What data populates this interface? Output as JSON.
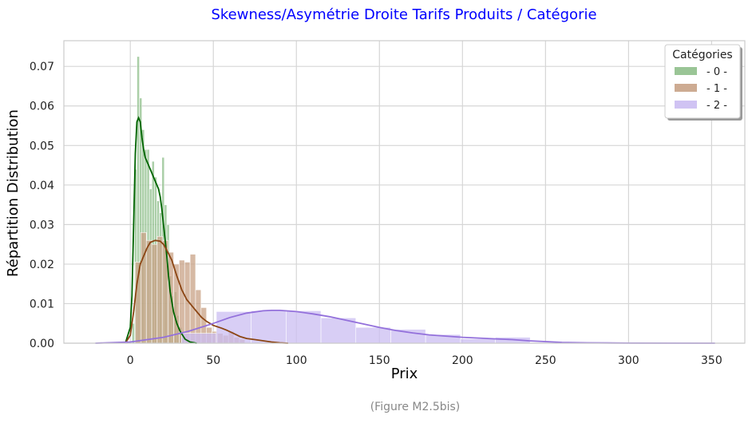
{
  "chart_data": {
    "type": "histogram",
    "title": "Skewness/Asymétrie Droite Tarifs Produits / Catégorie",
    "xlabel": "Prix",
    "ylabel": "Répartition Distribution",
    "caption": "(Figure M2.5bis)",
    "xlim": [
      -40,
      370
    ],
    "ylim": [
      0,
      0.0765
    ],
    "x_ticks": [
      0,
      50,
      100,
      150,
      200,
      250,
      300,
      350
    ],
    "y_ticks": [
      0.0,
      0.01,
      0.02,
      0.03,
      0.04,
      0.05,
      0.06,
      0.07
    ],
    "grid": true,
    "legend": {
      "title": "Catégories",
      "position": "top-right",
      "entries": [
        "- 0 -",
        "- 1 -",
        "- 2 -"
      ]
    },
    "series": [
      {
        "name": "- 0 -",
        "bar_color": "#8fbf8b",
        "line_color": "#006400",
        "bins": [
          {
            "x0": 1,
            "x1": 2.5,
            "y": 0.005
          },
          {
            "x0": 2.5,
            "x1": 4,
            "y": 0.044
          },
          {
            "x0": 4,
            "x1": 5.5,
            "y": 0.0725
          },
          {
            "x0": 5.5,
            "x1": 7,
            "y": 0.062
          },
          {
            "x0": 7,
            "x1": 8.5,
            "y": 0.054
          },
          {
            "x0": 8.5,
            "x1": 10,
            "y": 0.049
          },
          {
            "x0": 10,
            "x1": 11.5,
            "y": 0.049
          },
          {
            "x0": 11.5,
            "x1": 13,
            "y": 0.039
          },
          {
            "x0": 13,
            "x1": 14.5,
            "y": 0.046
          },
          {
            "x0": 14.5,
            "x1": 16,
            "y": 0.042
          },
          {
            "x0": 16,
            "x1": 17.5,
            "y": 0.036
          },
          {
            "x0": 17.5,
            "x1": 19,
            "y": 0.033
          },
          {
            "x0": 19,
            "x1": 20.5,
            "y": 0.047
          },
          {
            "x0": 20.5,
            "x1": 22,
            "y": 0.035
          },
          {
            "x0": 22,
            "x1": 23.5,
            "y": 0.03
          },
          {
            "x0": 23.5,
            "x1": 25,
            "y": 0.017
          },
          {
            "x0": 25,
            "x1": 26.5,
            "y": 0.012
          },
          {
            "x0": 26.5,
            "x1": 28,
            "y": 0.013
          },
          {
            "x0": 28,
            "x1": 29.5,
            "y": 0.007
          },
          {
            "x0": 29.5,
            "x1": 31,
            "y": 0.004
          },
          {
            "x0": 31,
            "x1": 32.5,
            "y": 0.0015
          }
        ],
        "kde": [
          [
            -3,
            0
          ],
          [
            0,
            0.004
          ],
          [
            1,
            0.012
          ],
          [
            2,
            0.03
          ],
          [
            3,
            0.048
          ],
          [
            4,
            0.056
          ],
          [
            5,
            0.057
          ],
          [
            6,
            0.056
          ],
          [
            7,
            0.052
          ],
          [
            8,
            0.049
          ],
          [
            9,
            0.047
          ],
          [
            10,
            0.046
          ],
          [
            11,
            0.045
          ],
          [
            12,
            0.044
          ],
          [
            13,
            0.043
          ],
          [
            14,
            0.042
          ],
          [
            15,
            0.041
          ],
          [
            16,
            0.04
          ],
          [
            17,
            0.039
          ],
          [
            18,
            0.037
          ],
          [
            19,
            0.034
          ],
          [
            20,
            0.03
          ],
          [
            21,
            0.026
          ],
          [
            22,
            0.022
          ],
          [
            23,
            0.017
          ],
          [
            24,
            0.013
          ],
          [
            26,
            0.008
          ],
          [
            28,
            0.005
          ],
          [
            30,
            0.003
          ],
          [
            33,
            0.001
          ],
          [
            36,
            0.0003
          ],
          [
            40,
            0
          ]
        ]
      },
      {
        "name": "- 1 -",
        "bar_color": "#c8a286",
        "line_color": "#8b4513",
        "bins": [
          {
            "x0": 3,
            "x1": 6.3,
            "y": 0.0205
          },
          {
            "x0": 6.3,
            "x1": 9.6,
            "y": 0.028
          },
          {
            "x0": 9.6,
            "x1": 12.9,
            "y": 0.026
          },
          {
            "x0": 12.9,
            "x1": 16.2,
            "y": 0.025
          },
          {
            "x0": 16.2,
            "x1": 19.5,
            "y": 0.027
          },
          {
            "x0": 19.5,
            "x1": 22.8,
            "y": 0.026
          },
          {
            "x0": 22.8,
            "x1": 26.1,
            "y": 0.023
          },
          {
            "x0": 26.1,
            "x1": 29.4,
            "y": 0.02
          },
          {
            "x0": 29.4,
            "x1": 32.7,
            "y": 0.021
          },
          {
            "x0": 32.7,
            "x1": 36,
            "y": 0.0205
          },
          {
            "x0": 36,
            "x1": 39.3,
            "y": 0.0225
          },
          {
            "x0": 39.3,
            "x1": 42.6,
            "y": 0.0135
          },
          {
            "x0": 42.6,
            "x1": 45.9,
            "y": 0.009
          },
          {
            "x0": 45.9,
            "x1": 49.2,
            "y": 0.004
          },
          {
            "x0": 49.2,
            "x1": 52.5,
            "y": 0.003
          },
          {
            "x0": 52.5,
            "x1": 55.8,
            "y": 0.0025
          },
          {
            "x0": 55.8,
            "x1": 59.1,
            "y": 0.002
          },
          {
            "x0": 59.1,
            "x1": 62.4,
            "y": 0.003
          },
          {
            "x0": 62.4,
            "x1": 65.7,
            "y": 0.0015
          },
          {
            "x0": 65.7,
            "x1": 69,
            "y": 0.001
          }
        ],
        "kde": [
          [
            -3,
            0
          ],
          [
            0,
            0.002
          ],
          [
            2,
            0.008
          ],
          [
            4,
            0.015
          ],
          [
            6,
            0.02
          ],
          [
            8,
            0.022
          ],
          [
            10,
            0.024
          ],
          [
            12,
            0.0255
          ],
          [
            15,
            0.026
          ],
          [
            18,
            0.0258
          ],
          [
            20,
            0.025
          ],
          [
            22,
            0.0235
          ],
          [
            25,
            0.021
          ],
          [
            28,
            0.017
          ],
          [
            31,
            0.0135
          ],
          [
            34,
            0.011
          ],
          [
            37,
            0.0095
          ],
          [
            40,
            0.008
          ],
          [
            43,
            0.0065
          ],
          [
            46,
            0.0055
          ],
          [
            50,
            0.0045
          ],
          [
            55,
            0.0038
          ],
          [
            58,
            0.0033
          ],
          [
            62,
            0.0025
          ],
          [
            66,
            0.0017
          ],
          [
            70,
            0.0012
          ],
          [
            75,
            0.0009
          ],
          [
            80,
            0.0006
          ],
          [
            85,
            0.0003
          ],
          [
            90,
            0.0001
          ],
          [
            95,
            0
          ]
        ]
      },
      {
        "name": "- 2 -",
        "bar_color": "#cbbdf2",
        "line_color": "#9370db",
        "bins": [
          {
            "x0": 30.8,
            "x1": 51.8,
            "y": 0.0025
          },
          {
            "x0": 51.8,
            "x1": 72.8,
            "y": 0.008
          },
          {
            "x0": 72.8,
            "x1": 93.8,
            "y": 0.0082
          },
          {
            "x0": 93.8,
            "x1": 114.8,
            "y": 0.0082
          },
          {
            "x0": 114.8,
            "x1": 135.8,
            "y": 0.0064
          },
          {
            "x0": 135.8,
            "x1": 156.8,
            "y": 0.004
          },
          {
            "x0": 156.8,
            "x1": 177.8,
            "y": 0.0035
          },
          {
            "x0": 177.8,
            "x1": 198.8,
            "y": 0.0022
          },
          {
            "x0": 198.8,
            "x1": 219.8,
            "y": 0.0011
          },
          {
            "x0": 219.8,
            "x1": 240.8,
            "y": 0.0015
          },
          {
            "x0": 240.8,
            "x1": 261.8,
            "y": 0.0002
          },
          {
            "x0": 261.8,
            "x1": 282.8,
            "y": 0.0001
          },
          {
            "x0": 282.8,
            "x1": 303.8,
            "y": 0.0001
          },
          {
            "x0": 303.8,
            "x1": 324.8,
            "y": 0.0001
          },
          {
            "x0": 324.8,
            "x1": 345.8,
            "y": 0.0001
          }
        ],
        "kde": [
          [
            -21,
            0
          ],
          [
            0,
            0.0003
          ],
          [
            20,
            0.0015
          ],
          [
            35,
            0.003
          ],
          [
            50,
            0.005
          ],
          [
            60,
            0.0065
          ],
          [
            70,
            0.0076
          ],
          [
            80,
            0.0082
          ],
          [
            85,
            0.0083
          ],
          [
            90,
            0.0083
          ],
          [
            100,
            0.008
          ],
          [
            110,
            0.0074
          ],
          [
            120,
            0.0067
          ],
          [
            130,
            0.0058
          ],
          [
            140,
            0.0049
          ],
          [
            150,
            0.004
          ],
          [
            160,
            0.0032
          ],
          [
            170,
            0.0026
          ],
          [
            180,
            0.0021
          ],
          [
            190,
            0.0018
          ],
          [
            200,
            0.0015
          ],
          [
            210,
            0.0013
          ],
          [
            220,
            0.0011
          ],
          [
            230,
            0.0009
          ],
          [
            240,
            0.0006
          ],
          [
            250,
            0.0004
          ],
          [
            260,
            0.0002
          ],
          [
            275,
            0.0001
          ],
          [
            300,
            3e-05
          ],
          [
            352,
            0
          ]
        ]
      }
    ]
  }
}
